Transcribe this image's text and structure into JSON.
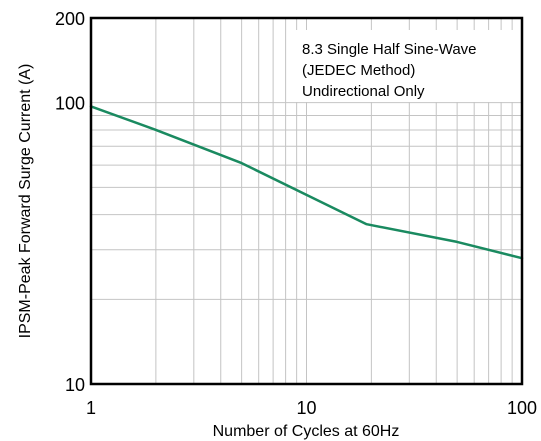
{
  "chart_data": {
    "type": "line",
    "title": "",
    "xlabel": "Number of Cycles at 60Hz",
    "ylabel": "IPSM-Peak Forward Surge Current (A)",
    "xscale": "log",
    "yscale": "log",
    "xlim": [
      1,
      100
    ],
    "ylim": [
      10,
      200
    ],
    "x_ticks": [
      1,
      10,
      100
    ],
    "y_ticks": [
      10,
      100,
      200
    ],
    "grid": true,
    "line_color": "#1a8a60",
    "series": [
      {
        "x": [
          1,
          2,
          5,
          10,
          19,
          50,
          100
        ],
        "y": [
          97,
          80,
          61,
          47,
          37,
          32,
          28
        ]
      }
    ],
    "annotation": [
      "8.3 Single Half Sine-Wave",
      "(JEDEC Method)",
      "Undirectional Only"
    ]
  }
}
